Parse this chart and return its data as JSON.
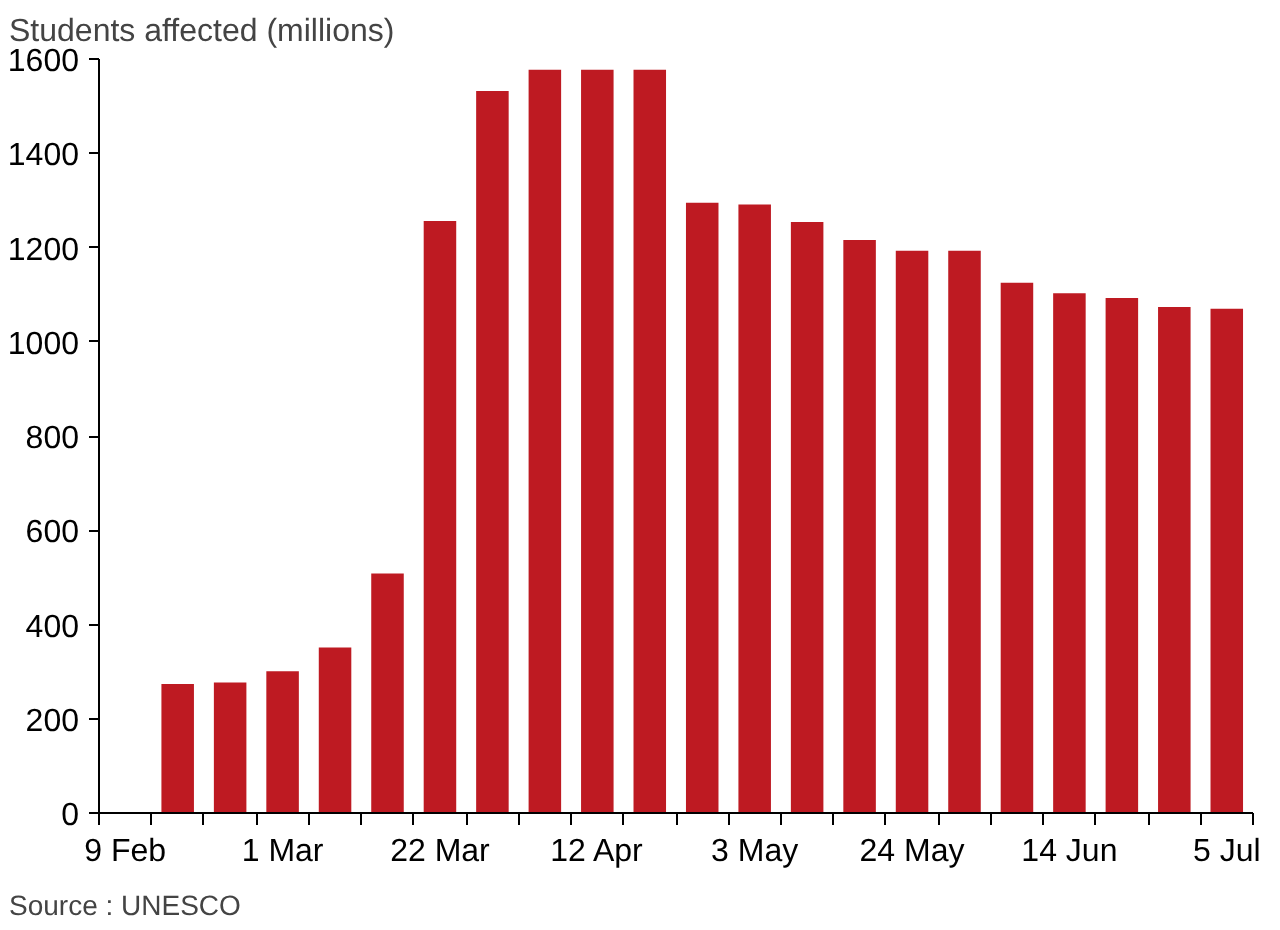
{
  "chart_data": {
    "type": "bar",
    "ylabel": "Students affected (millions)",
    "categories": [
      "9 Feb",
      null,
      null,
      "1 Mar",
      null,
      null,
      "22 Mar",
      null,
      null,
      "12 Apr",
      null,
      null,
      "3 May",
      null,
      null,
      "24 May",
      null,
      null,
      "14 Jun",
      null,
      null,
      "5 Jul"
    ],
    "values": [
      null,
      274,
      277,
      301,
      351,
      508,
      1256,
      1532,
      1577,
      1577,
      1577,
      1295,
      1291,
      1254,
      1216,
      1193,
      1193,
      1125,
      1103,
      1093,
      1074,
      1070
    ],
    "color": "#be1a22",
    "ylim": [
      0,
      1600
    ],
    "yticks": [
      0,
      200,
      400,
      600,
      800,
      1000,
      1200,
      1400,
      1600
    ],
    "grid": false,
    "annotations": [
      "Source : UNESCO"
    ]
  }
}
